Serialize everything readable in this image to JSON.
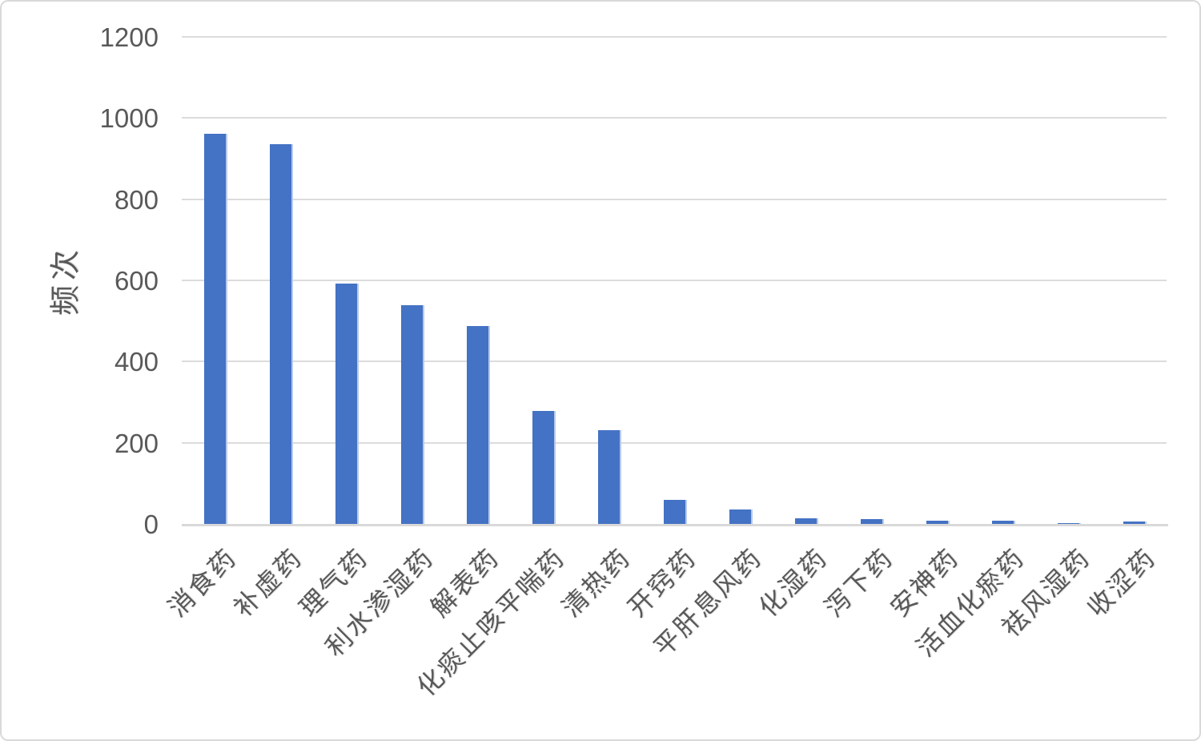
{
  "chart_data": {
    "type": "bar",
    "title": "",
    "xlabel": "",
    "ylabel": "频次",
    "categories": [
      "消食药",
      "补虚药",
      "理气药",
      "利水渗湿药",
      "解表药",
      "化痰止咳平喘药",
      "清热药",
      "开窍药",
      "平肝息风药",
      "化湿药",
      "泻下药",
      "安神药",
      "活血化瘀药",
      "祛风湿药",
      "收涩药"
    ],
    "values": [
      961,
      935,
      593,
      539,
      488,
      279,
      231,
      60,
      35,
      14,
      12,
      8,
      8,
      2,
      5
    ],
    "ylim": [
      0,
      1200
    ],
    "y_ticks": [
      0,
      200,
      400,
      600,
      800,
      1000,
      1200
    ],
    "grid": "horizontal",
    "legend": "none",
    "bar_color": "#4472C4",
    "axis_text_color": "#595959",
    "gridline_color": "#DCDCDC",
    "frame_border_color": "#D9D9D9"
  }
}
